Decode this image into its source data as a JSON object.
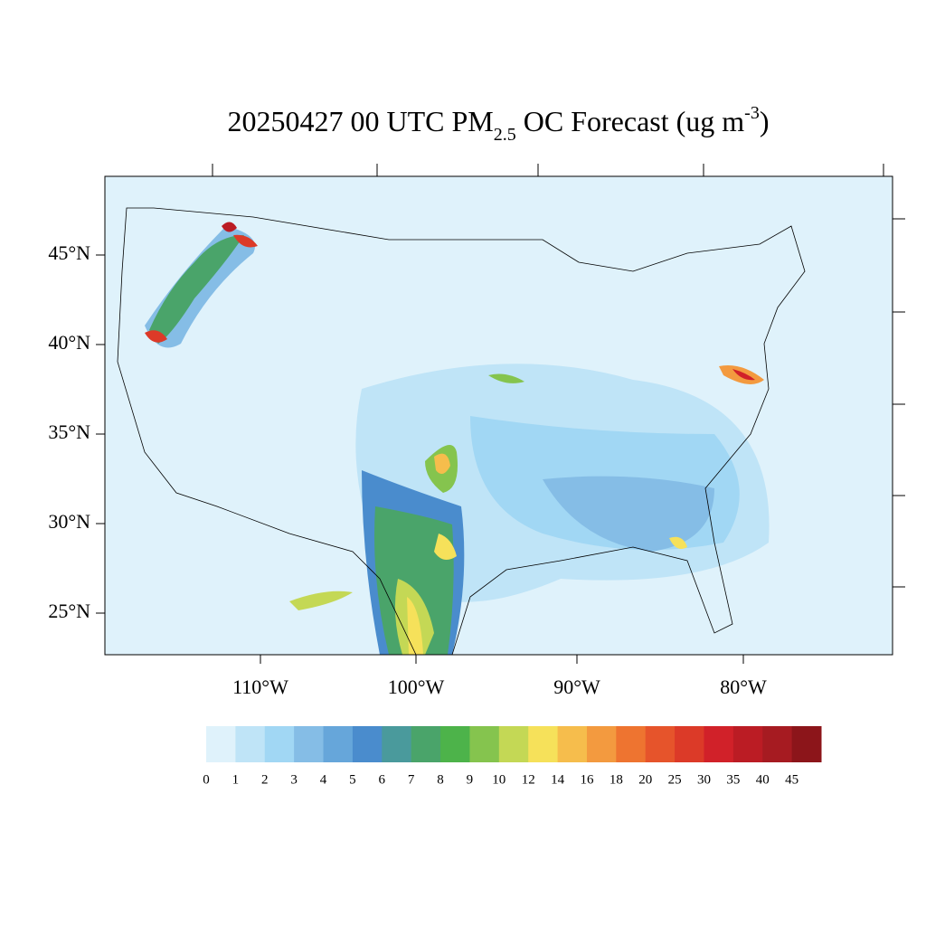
{
  "chart_data": {
    "type": "map",
    "title": {
      "main": "20250427 00 UTC PM",
      "sub": "2.5",
      "mid": " OC Forecast (ug m",
      "sup": "-3",
      "end": ")"
    },
    "lat_ticks": [
      {
        "value": 45,
        "label": "45°N"
      },
      {
        "value": 40,
        "label": "40°N"
      },
      {
        "value": 35,
        "label": "35°N"
      },
      {
        "value": 30,
        "label": "30°N"
      },
      {
        "value": 25,
        "label": "25°N"
      }
    ],
    "lon_ticks": [
      {
        "value": -110,
        "label": "110°W"
      },
      {
        "value": -100,
        "label": "100°W"
      },
      {
        "value": -90,
        "label": "90°W"
      },
      {
        "value": -80,
        "label": "80°W"
      }
    ],
    "colorbar": {
      "levels": [
        0,
        1,
        2,
        3,
        4,
        5,
        6,
        7,
        8,
        9,
        10,
        12,
        14,
        16,
        18,
        20,
        25,
        30,
        35,
        40,
        45
      ],
      "colors": [
        "#dff2fb",
        "#bfe4f7",
        "#a1d7f4",
        "#85bde6",
        "#66a6da",
        "#4a8ccd",
        "#4a9a9c",
        "#4aa46a",
        "#4db34a",
        "#85c44e",
        "#c4d855",
        "#f6e15a",
        "#f6bd4c",
        "#f39a3f",
        "#ee7430",
        "#e6542b",
        "#dc3a28",
        "#d12129",
        "#bb1c24",
        "#a61b21",
        "#8c151a"
      ]
    }
  }
}
